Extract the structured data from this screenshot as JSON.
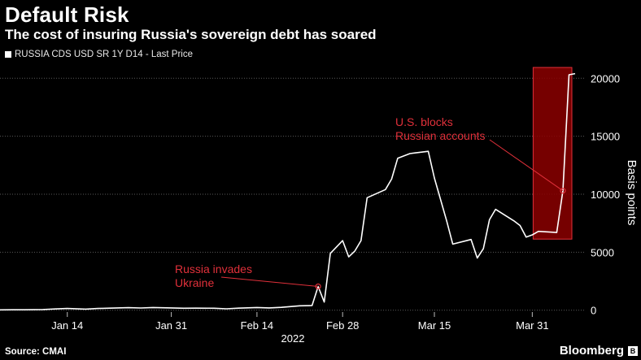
{
  "header": {
    "title": "Default Risk",
    "subtitle": "The cost of insuring Russia's sovereign debt has soared"
  },
  "legend": {
    "label": "RUSSIA CDS USD SR 1Y D14 - Last Price"
  },
  "footer": {
    "source": "Source: CMAI",
    "brand": "Bloomberg",
    "brand_icon": "bloomberg-logo-icon"
  },
  "colors": {
    "background": "#000000",
    "line": "#ffffff",
    "annotation": "#e0303a",
    "highlight": "#8b0000",
    "grid": "#5a5a5a"
  },
  "chart_data": {
    "type": "line",
    "title": "Default Risk",
    "subtitle": "The cost of insuring Russia's sovereign debt has soared",
    "ylabel": "Basis points",
    "xlabel": "",
    "year_label": "2022",
    "ylim": [
      -1000,
      21000
    ],
    "yticks": [
      0,
      5000,
      10000,
      15000,
      20000
    ],
    "ytick_labels": [
      "0",
      "5000",
      "10000",
      "15000",
      "20000"
    ],
    "xlim": [
      "2022-01-03",
      "2022-04-07"
    ],
    "xticks": [
      "2022-01-14",
      "2022-01-31",
      "2022-02-14",
      "2022-02-28",
      "2022-03-15",
      "2022-03-31"
    ],
    "xtick_labels": [
      "Jan 14",
      "Jan 31",
      "Feb 14",
      "Feb 28",
      "Mar 15",
      "Mar 31"
    ],
    "grid": true,
    "legend_position": "top-left",
    "series": [
      {
        "name": "RUSSIA CDS USD SR 1Y D14 - Last Price",
        "points": [
          [
            "2022-01-03",
            30
          ],
          [
            "2022-01-05",
            40
          ],
          [
            "2022-01-07",
            40
          ],
          [
            "2022-01-10",
            60
          ],
          [
            "2022-01-12",
            110
          ],
          [
            "2022-01-14",
            150
          ],
          [
            "2022-01-17",
            90
          ],
          [
            "2022-01-19",
            150
          ],
          [
            "2022-01-21",
            180
          ],
          [
            "2022-01-24",
            220
          ],
          [
            "2022-01-26",
            190
          ],
          [
            "2022-01-28",
            230
          ],
          [
            "2022-01-31",
            200
          ],
          [
            "2022-02-02",
            170
          ],
          [
            "2022-02-04",
            180
          ],
          [
            "2022-02-07",
            170
          ],
          [
            "2022-02-09",
            120
          ],
          [
            "2022-02-11",
            180
          ],
          [
            "2022-02-14",
            230
          ],
          [
            "2022-02-16",
            200
          ],
          [
            "2022-02-18",
            250
          ],
          [
            "2022-02-21",
            380
          ],
          [
            "2022-02-23",
            400
          ],
          [
            "2022-02-24",
            2050
          ],
          [
            "2022-02-25",
            700
          ],
          [
            "2022-02-26",
            4900
          ],
          [
            "2022-02-28",
            6000
          ],
          [
            "2022-03-01",
            4600
          ],
          [
            "2022-03-02",
            5100
          ],
          [
            "2022-03-03",
            6000
          ],
          [
            "2022-03-04",
            9700
          ],
          [
            "2022-03-07",
            10400
          ],
          [
            "2022-03-08",
            11300
          ],
          [
            "2022-03-09",
            13100
          ],
          [
            "2022-03-11",
            13500
          ],
          [
            "2022-03-14",
            13700
          ],
          [
            "2022-03-15",
            11400
          ],
          [
            "2022-03-17",
            7700
          ],
          [
            "2022-03-18",
            5700
          ],
          [
            "2022-03-21",
            6100
          ],
          [
            "2022-03-22",
            4500
          ],
          [
            "2022-03-23",
            5300
          ],
          [
            "2022-03-24",
            7800
          ],
          [
            "2022-03-25",
            8700
          ],
          [
            "2022-03-28",
            7700
          ],
          [
            "2022-03-29",
            7300
          ],
          [
            "2022-03-30",
            6300
          ],
          [
            "2022-03-31",
            6500
          ],
          [
            "2022-04-01",
            6800
          ],
          [
            "2022-04-04",
            6700
          ],
          [
            "2022-04-05",
            10300
          ],
          [
            "2022-04-06",
            20300
          ],
          [
            "2022-04-07",
            20400
          ]
        ]
      }
    ],
    "annotations": [
      {
        "lines": [
          "Russia invades",
          "Ukraine"
        ],
        "target": [
          "2022-02-24",
          2050
        ]
      },
      {
        "lines": [
          "U.S. blocks",
          "Russian accounts"
        ],
        "target": [
          "2022-04-05",
          10300
        ]
      }
    ],
    "highlight": {
      "x_range": [
        "2022-04-02",
        "2022-04-09"
      ],
      "y_range": [
        6200,
        21000
      ]
    }
  }
}
